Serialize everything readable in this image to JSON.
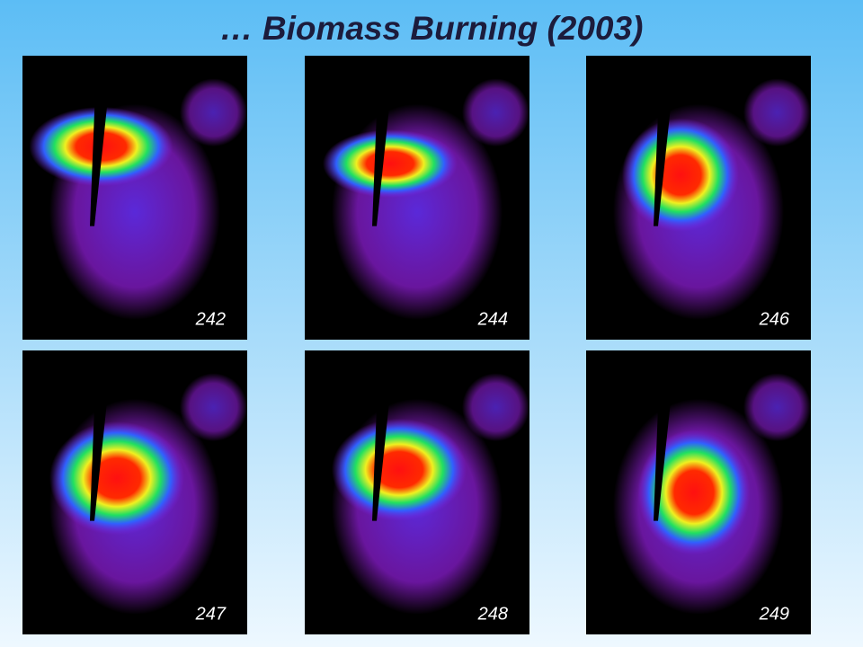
{
  "title": "… Biomass Burning (2003)",
  "panels": [
    {
      "label": "242"
    },
    {
      "label": "244"
    },
    {
      "label": "246"
    },
    {
      "label": "247"
    },
    {
      "label": "248"
    },
    {
      "label": "249"
    }
  ]
}
